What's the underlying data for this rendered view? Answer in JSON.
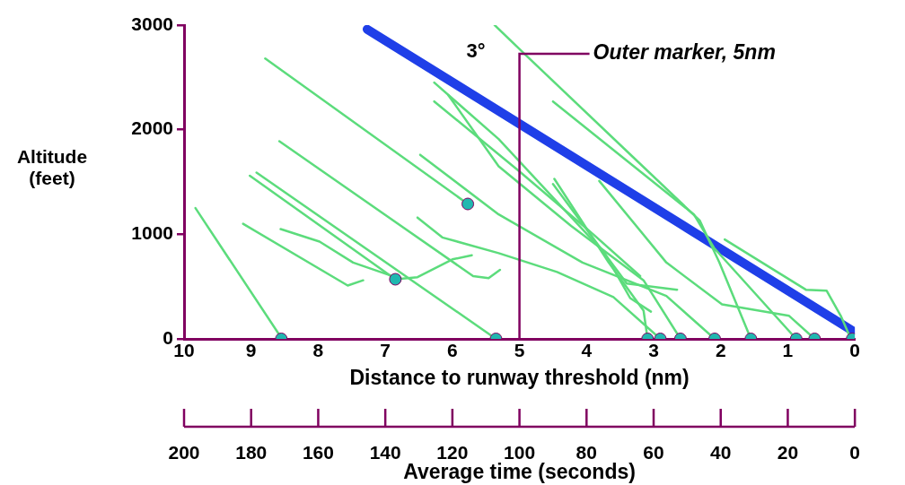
{
  "chart_data": {
    "type": "line",
    "xlabel": "Distance to runway threshold (nm)",
    "ylabel": "Altitude (feet)",
    "x2label": "Average time (seconds)",
    "xlim": [
      10,
      0
    ],
    "xticks": [
      10,
      9,
      8,
      7,
      6,
      5,
      4,
      3,
      2,
      1,
      0
    ],
    "ylim": [
      0,
      3000
    ],
    "yticks": [
      0,
      1000,
      2000,
      3000
    ],
    "x2lim": [
      200,
      0
    ],
    "x2ticks": [
      200,
      180,
      160,
      140,
      120,
      100,
      80,
      60,
      40,
      20,
      0
    ],
    "grid": false,
    "legend": false,
    "ref_lines": [
      {
        "axis": "x",
        "value": 5,
        "label": "Outer marker, 5nm",
        "color": "#800060"
      }
    ],
    "annotations": [
      "3°"
    ],
    "series": [
      {
        "color": "#1f3fe8",
        "x": [
          7.27,
          0.04
        ],
        "values": [
          2960,
          80
        ]
      },
      {
        "color": "#5cdc7c",
        "x": [
          8.79,
          5.77
        ],
        "values": [
          2680,
          1290
        ]
      },
      {
        "color": "#5cdc7c",
        "x": [
          8.58,
          5.69,
          5.46,
          5.29
        ],
        "values": [
          1890,
          600,
          580,
          660
        ]
      },
      {
        "color": "#5cdc7c",
        "x": [
          6.48,
          5.31,
          4.06,
          2.81,
          2.09
        ],
        "values": [
          1760,
          1190,
          730,
          410,
          0
        ]
      },
      {
        "color": "#5cdc7c",
        "x": [
          8.92,
          5.35
        ],
        "values": [
          1590,
          0
        ]
      },
      {
        "color": "#5cdc7c",
        "x": [
          9.02,
          6.85
        ],
        "values": [
          1560,
          570
        ]
      },
      {
        "color": "#5cdc7c",
        "x": [
          6.85,
          6.52,
          6.0,
          5.71
        ],
        "values": [
          570,
          590,
          760,
          800
        ]
      },
      {
        "color": "#5cdc7c",
        "x": [
          9.12,
          7.56,
          7.33
        ],
        "values": [
          1100,
          510,
          560
        ]
      },
      {
        "color": "#5cdc7c",
        "x": [
          8.56,
          7.98,
          7.48,
          6.85
        ],
        "values": [
          1050,
          930,
          730,
          590
        ]
      },
      {
        "color": "#5cdc7c",
        "x": [
          9.83,
          8.54
        ],
        "values": [
          1250,
          0
        ]
      },
      {
        "color": "#5cdc7c",
        "x": [
          6.52,
          6.15,
          5.31,
          4.44,
          3.6,
          2.9
        ],
        "values": [
          1160,
          970,
          820,
          640,
          400,
          0
        ]
      },
      {
        "color": "#5cdc7c",
        "x": [
          5.37,
          4.9,
          3.31,
          2.31,
          2.21,
          2.02,
          1.55
        ],
        "values": [
          3000,
          2710,
          1740,
          1130,
          990,
          730,
          0
        ]
      },
      {
        "color": "#5cdc7c",
        "x": [
          4.5,
          2.4,
          2.1,
          0.875
        ],
        "values": [
          2270,
          1190,
          870,
          0
        ]
      },
      {
        "color": "#5cdc7c",
        "x": [
          1.94,
          0.73,
          0.42,
          0.21,
          0.06
        ],
        "values": [
          950,
          470,
          460,
          220,
          0
        ]
      },
      {
        "color": "#5cdc7c",
        "x": [
          3.81,
          2.81,
          1.98,
          0.98,
          0.6
        ],
        "values": [
          1510,
          730,
          330,
          220,
          0
        ]
      },
      {
        "color": "#5cdc7c",
        "x": [
          4.48,
          3.67,
          3.15,
          3.09
        ],
        "values": [
          1530,
          730,
          270,
          0
        ]
      },
      {
        "color": "#5cdc7c",
        "x": [
          4.5,
          3.4,
          2.65
        ],
        "values": [
          1480,
          530,
          470
        ]
      },
      {
        "color": "#5cdc7c",
        "x": [
          6.27,
          5.31,
          3.73,
          3.35,
          3.04
        ],
        "values": [
          2450,
          1910,
          820,
          390,
          260
        ]
      },
      {
        "color": "#5cdc7c",
        "x": [
          6.06,
          5.31,
          4.23,
          3.15,
          2.6
        ],
        "values": [
          2330,
          1650,
          1080,
          560,
          0
        ]
      },
      {
        "color": "#5cdc7c",
        "x": [
          6.27,
          5.0,
          3.9,
          3.2
        ],
        "values": [
          2270,
          1600,
          1000,
          600
        ]
      },
      {
        "type": "scatter",
        "marker": "circle",
        "color": "#20b8b0",
        "x": [
          8.55,
          5.35,
          3.09,
          2.9,
          2.6,
          2.09,
          1.55,
          0.875,
          0.6,
          0.04,
          6.85,
          5.77
        ],
        "values": [
          0,
          0,
          0,
          0,
          0,
          0,
          0,
          0,
          0,
          0,
          570,
          1290
        ]
      }
    ]
  }
}
